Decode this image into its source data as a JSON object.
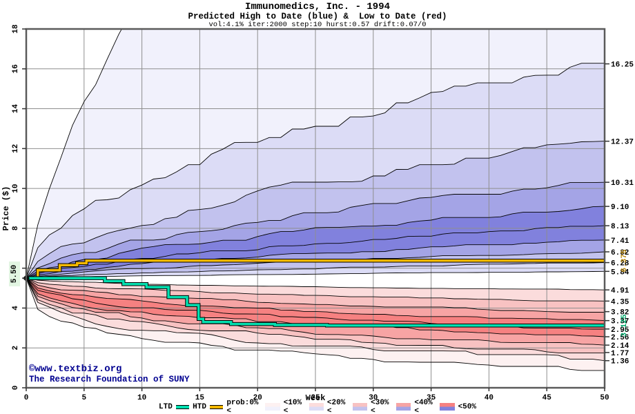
{
  "header": {
    "title": "Immunomedics, Inc. - 1994",
    "subtitle": "Predicted High to Date (blue) &  Low to Date (red)",
    "params": "vol:4.1% iter:2000 step:10 hurst:0.57 drift:0.07/0"
  },
  "watermark": {
    "line1": "©www.textbiz.org",
    "line2": "The Research Foundation of SUNY",
    "color": "#000090"
  },
  "chart_data": {
    "type": "area",
    "title": "Immunomedics, Inc. - 1994",
    "subtitle": "Predicted High to Date (blue) &  Low to Date (red)",
    "xlabel": "Week",
    "ylabel": "Price ($)",
    "xlim": [
      0,
      50
    ],
    "ylim": [
      0,
      18
    ],
    "xticks": [
      0,
      5,
      10,
      15,
      20,
      25,
      30,
      35,
      40,
      45,
      50
    ],
    "yticks": [
      0,
      2,
      4,
      6,
      8,
      10,
      12,
      14,
      16,
      18
    ],
    "grid": true,
    "grid_color": "#8e8e8e",
    "frame_color": "#5a5a5a",
    "start": {
      "week": 0,
      "price": 5.5,
      "label": "5.50"
    },
    "high_fan": {
      "direction": "up",
      "envelope": {
        "final": 52.0,
        "k": 0.73
      },
      "levels": [
        {
          "final": 16.25,
          "label": "16.25",
          "k": 0.5
        },
        {
          "final": 12.37,
          "label": "12.37",
          "k": 0.55
        },
        {
          "final": 10.31,
          "label": "10.31",
          "k": 0.58
        },
        {
          "final": 9.1,
          "label": "9.10",
          "k": 0.6
        },
        {
          "final": 8.13,
          "label": "8.13",
          "k": 0.62
        },
        {
          "final": 7.41,
          "label": "7.41",
          "k": 0.64
        },
        {
          "final": 6.82,
          "label": "6.82",
          "k": 0.66
        },
        {
          "final": 6.28,
          "label": "6.28",
          "k": 0.68
        },
        {
          "final": 5.84,
          "label": "5.84",
          "k": 0.7
        }
      ],
      "shades": [
        "#f1f1fc",
        "#dcdcf6",
        "#c2c2ee",
        "#a4a4e6",
        "#8181dd"
      ],
      "band_shade_index": [
        0,
        1,
        2,
        3,
        4,
        4,
        3,
        2,
        1
      ]
    },
    "low_fan": {
      "direction": "down",
      "envelope": {
        "final": 0.9,
        "k": 0.28
      },
      "levels": [
        {
          "final": 4.91,
          "label": "4.91",
          "k": 0.45
        },
        {
          "final": 4.35,
          "label": "4.35",
          "k": 0.42
        },
        {
          "final": 3.82,
          "label": "3.82",
          "k": 0.4
        },
        {
          "final": 3.37,
          "label": "3.37",
          "k": 0.38
        },
        {
          "final": 2.95,
          "label": "2.95",
          "k": 0.36
        },
        {
          "final": 2.56,
          "label": "2.56",
          "k": 0.34
        },
        {
          "final": 2.14,
          "label": "2.14",
          "k": 0.33
        },
        {
          "final": 1.77,
          "label": "1.77",
          "k": 0.32
        },
        {
          "final": 1.36,
          "label": "1.36",
          "k": 0.31
        }
      ],
      "shades": [
        "#fdf1f1",
        "#fbdcdc",
        "#f8c2c2",
        "#f7a4a4",
        "#f68181"
      ],
      "band_shade_index": [
        1,
        2,
        3,
        4,
        4,
        3,
        2,
        1,
        0
      ]
    },
    "htd": {
      "label": "HTD",
      "color": "#f4b800",
      "label_color": "#b8860b",
      "final": 6.375,
      "final_label": "6.375",
      "steps": [
        [
          0,
          5.5
        ],
        [
          1,
          5.5
        ],
        [
          1,
          5.9
        ],
        [
          2.9,
          5.9
        ],
        [
          2.9,
          6.15
        ],
        [
          4.4,
          6.15
        ],
        [
          4.4,
          6.25
        ],
        [
          5.2,
          6.25
        ],
        [
          5.2,
          6.375
        ],
        [
          50,
          6.375
        ]
      ]
    },
    "ltd": {
      "label": "LTD",
      "color": "#00e0b0",
      "label_color": "#00a86b",
      "final": 3.125,
      "final_label": "3.125",
      "steps": [
        [
          0,
          5.5
        ],
        [
          6.8,
          5.5
        ],
        [
          6.8,
          5.35
        ],
        [
          8.4,
          5.35
        ],
        [
          8.4,
          5.2
        ],
        [
          10.4,
          5.2
        ],
        [
          10.4,
          5.05
        ],
        [
          12.3,
          5.05
        ],
        [
          12.3,
          4.55
        ],
        [
          13.9,
          4.55
        ],
        [
          13.9,
          4.15
        ],
        [
          14.9,
          4.15
        ],
        [
          14.9,
          3.45
        ],
        [
          15.3,
          3.45
        ],
        [
          15.3,
          3.3
        ],
        [
          17.7,
          3.3
        ],
        [
          17.7,
          3.2
        ],
        [
          21.5,
          3.2
        ],
        [
          21.5,
          3.15
        ],
        [
          26,
          3.15
        ],
        [
          26,
          3.125
        ],
        [
          50,
          3.125
        ]
      ]
    },
    "legend": {
      "prob_labels": [
        "prob:0%<",
        "<10%<",
        "<20%<",
        "<30%<",
        "<40%<",
        "<50%"
      ]
    }
  }
}
